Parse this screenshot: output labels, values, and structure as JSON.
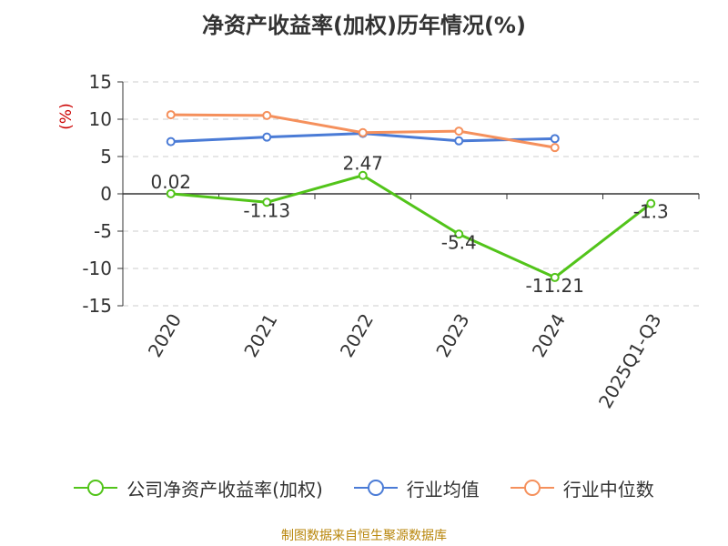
{
  "chart_data": {
    "type": "line",
    "title": "净资产收益率(加权)历年情况(%)",
    "ylabel": "(%)",
    "categories": [
      "2020",
      "2021",
      "2022",
      "2023",
      "2024",
      "2025Q1-Q3"
    ],
    "ylim": [
      -15,
      15
    ],
    "yticks": [
      15,
      10,
      5,
      0,
      -5,
      -10,
      -15
    ],
    "ytick_labels": [
      "15",
      "10",
      "5",
      "0",
      "-5",
      "-10",
      "-15"
    ],
    "grid": true,
    "legend_position": "bottom",
    "series": [
      {
        "name": "公司净资产收益率(加权)",
        "color": "#52c41a",
        "values": [
          0.02,
          -1.13,
          2.47,
          -5.4,
          -11.21,
          -1.3
        ],
        "data_labels": [
          "0.02",
          "-1.13",
          "2.47",
          "-5.4",
          "-11.21",
          "-1.3"
        ]
      },
      {
        "name": "行业均值",
        "color": "#4a7bd6",
        "values": [
          7.0,
          7.6,
          8.1,
          7.1,
          7.4,
          null
        ]
      },
      {
        "name": "行业中位数",
        "color": "#f5905c",
        "values": [
          10.6,
          10.5,
          8.2,
          8.4,
          6.2,
          null
        ]
      }
    ]
  },
  "source": "制图数据来自恒生聚源数据库",
  "colors": {
    "axis": "#333333",
    "grid": "#cccccc",
    "ylabel": "#cc0000",
    "source": "#b8860b"
  }
}
